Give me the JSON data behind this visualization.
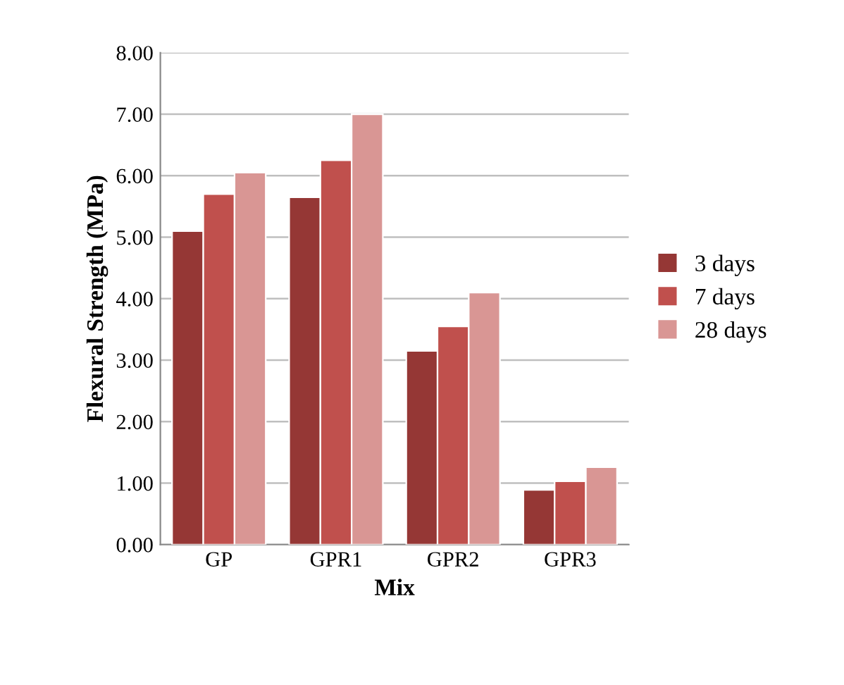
{
  "chart_data": {
    "type": "bar",
    "xlabel": "Mix",
    "ylabel": "Flexural Strength (MPa)",
    "categories": [
      "GP",
      "GPR1",
      "GPR2",
      "GPR3"
    ],
    "series": [
      {
        "name": "3 days",
        "color": "#953735",
        "values": [
          5.1,
          5.65,
          3.15,
          0.89
        ]
      },
      {
        "name": "7 days",
        "color": "#c0504d",
        "values": [
          5.7,
          6.25,
          3.55,
          1.03
        ]
      },
      {
        "name": "28 days",
        "color": "#d99694",
        "values": [
          6.05,
          7.0,
          4.1,
          1.26
        ]
      }
    ],
    "ylim": [
      0,
      8
    ],
    "yticks": [
      {
        "value": 0,
        "label": "0.00"
      },
      {
        "value": 1,
        "label": "1.00"
      },
      {
        "value": 2,
        "label": "2.00"
      },
      {
        "value": 3,
        "label": "3.00"
      },
      {
        "value": 4,
        "label": "4.00"
      },
      {
        "value": 5,
        "label": "5.00"
      },
      {
        "value": 6,
        "label": "6.00"
      },
      {
        "value": 7,
        "label": "7.00"
      },
      {
        "value": 8,
        "label": "8.00"
      }
    ],
    "grid": "y",
    "legend": "right"
  }
}
